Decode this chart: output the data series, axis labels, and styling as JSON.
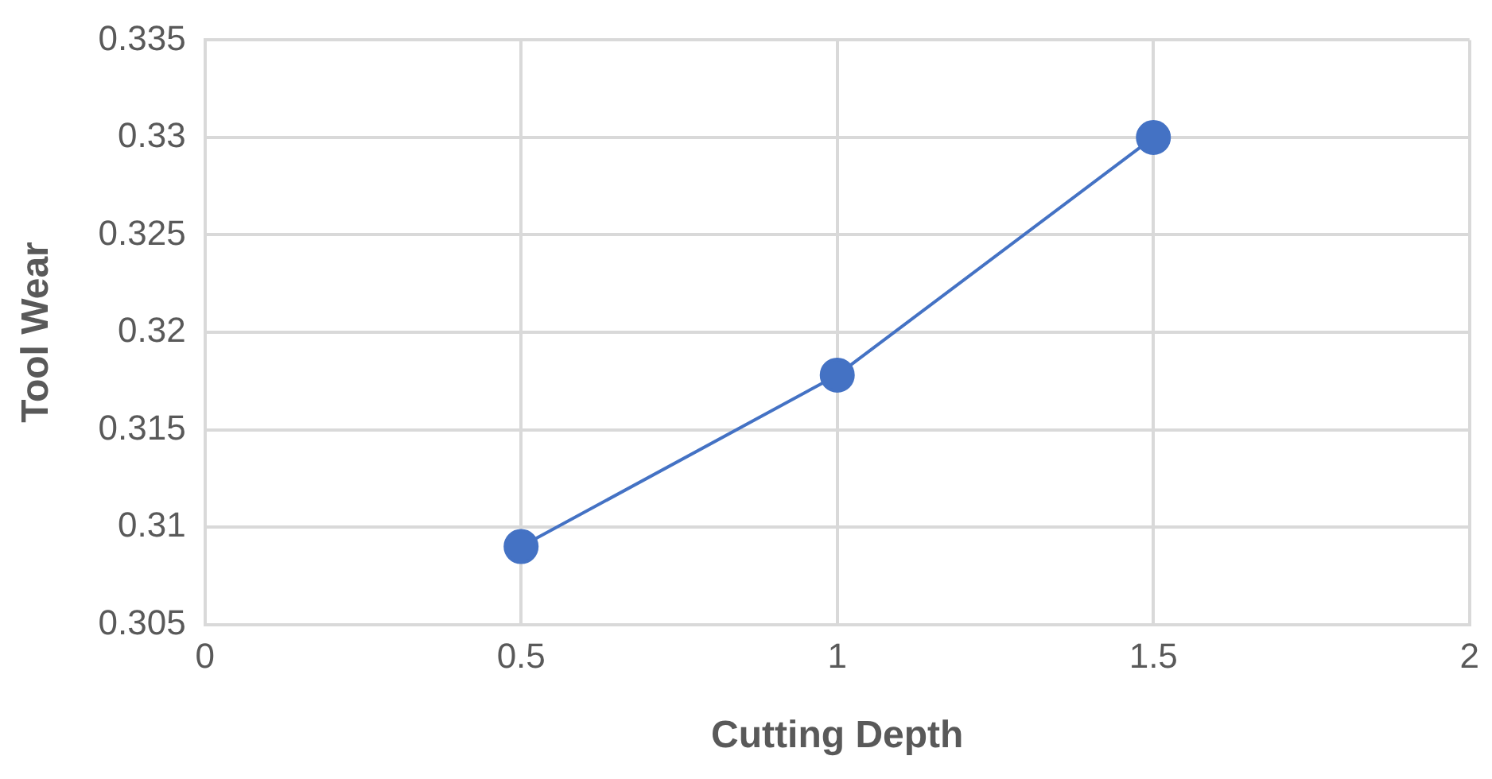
{
  "chart_data": {
    "type": "line",
    "xlabel": "Cutting Depth",
    "ylabel": "Tool Wear",
    "x": [
      0.5,
      1,
      1.5
    ],
    "series": [
      {
        "color": "#4472c4",
        "values": [
          0.309,
          0.3178,
          0.33
        ]
      }
    ],
    "xlim": [
      0,
      2
    ],
    "xticks": [
      0,
      0.5,
      1,
      1.5,
      2
    ],
    "ylim": [
      0.305,
      0.335
    ],
    "yticks": [
      0.305,
      0.31,
      0.315,
      0.32,
      0.325,
      0.33,
      0.335
    ],
    "grid": true,
    "legend": false,
    "marker": "circle",
    "line_style": "solid"
  }
}
